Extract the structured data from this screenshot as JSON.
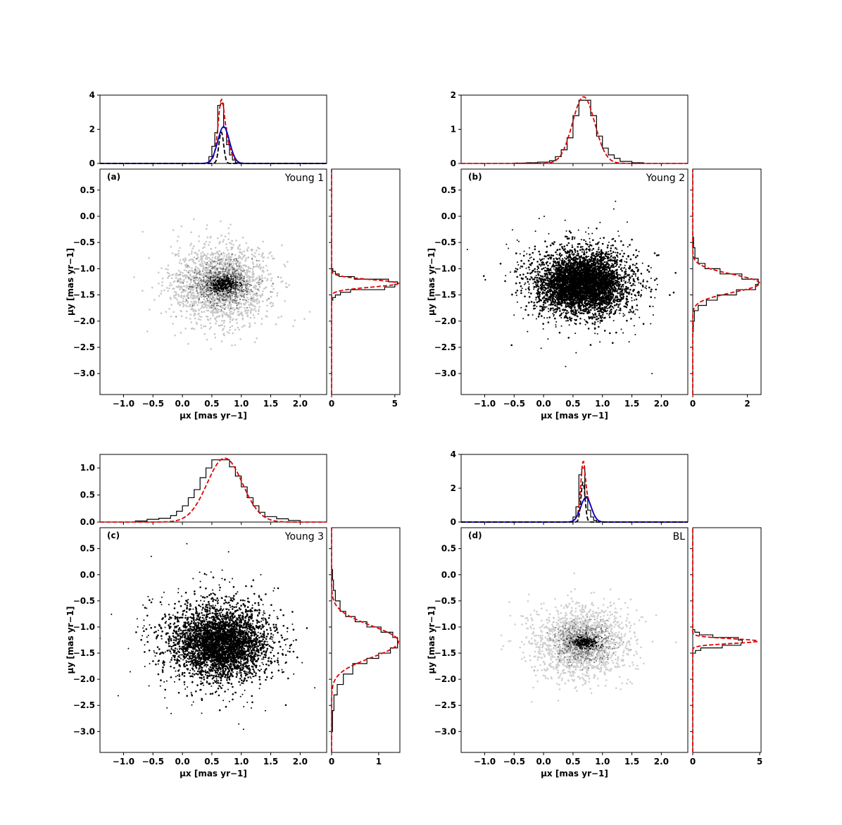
{
  "chart_data": [
    {
      "type": "scatter",
      "panel_label": "(a)",
      "name": "Young 1",
      "xlabel": "μx [mas yr−1]",
      "ylabel": "μy [mas yr−1]",
      "xlim": [
        -1.4,
        2.45
      ],
      "ylim": [
        -3.4,
        0.9
      ],
      "xticks": [
        "−1.0",
        "−0.5",
        "0.0",
        "0.5",
        "1.0",
        "1.5",
        "2.0"
      ],
      "yticks": [
        "0.5",
        "0.0",
        "−0.5",
        "−1.0",
        "−1.5",
        "−2.0",
        "−2.5",
        "−3.0"
      ],
      "scatter": {
        "field": {
          "color": "#c8c8c8",
          "center": [
            0.65,
            -1.3
          ],
          "sigma": [
            0.42,
            0.38
          ],
          "count": 1800
        },
        "members": {
          "color": "#000000",
          "center": [
            0.7,
            -1.3
          ],
          "sigma": [
            0.12,
            0.07
          ],
          "count": 260
        },
        "mid": {
          "color": "#666666",
          "center": [
            0.68,
            -1.3
          ],
          "sigma": [
            0.25,
            0.2
          ],
          "count": 700
        }
      },
      "hist_x": {
        "ylim": [
          0,
          4
        ],
        "yticks": [
          "0",
          "2",
          "4"
        ],
        "bins": [
          0.45,
          0.5,
          0.55,
          0.6,
          0.65,
          0.7,
          0.75,
          0.8,
          0.85,
          0.9,
          0.95
        ],
        "counts": [
          0.4,
          1.0,
          1.8,
          3.4,
          3.5,
          2.1,
          1.1,
          0.5,
          0.2,
          0.05
        ],
        "curves": [
          {
            "label": "total",
            "color": "#e00000",
            "dash": true,
            "components": [
              [
                0.66,
                0.05,
                2.3
              ],
              [
                0.7,
                0.1,
                1.55
              ]
            ]
          },
          {
            "label": "broad",
            "color": "#0000cc",
            "dash": false,
            "components": [
              [
                0.7,
                0.1,
                2.15
              ]
            ]
          },
          {
            "label": "narrow",
            "color": "#000000",
            "dash": true,
            "components": [
              [
                0.66,
                0.04,
                1.85
              ]
            ]
          }
        ]
      },
      "hist_y": {
        "xlim": [
          0,
          5.4
        ],
        "xticks": [
          "0",
          "5"
        ],
        "bins": [
          -1.6,
          -1.55,
          -1.5,
          -1.45,
          -1.4,
          -1.35,
          -1.3,
          -1.25,
          -1.2,
          -1.15,
          -1.1,
          -1.05,
          -1.0
        ],
        "counts": [
          0.1,
          0.3,
          0.7,
          1.5,
          4.2,
          5.0,
          5.2,
          4.5,
          1.8,
          0.6,
          0.3,
          0.1
        ],
        "curves": [
          {
            "label": "total",
            "color": "#e00000",
            "dash": true,
            "components": [
              [
                -1.28,
                0.07,
                5.3
              ]
            ]
          }
        ]
      }
    },
    {
      "type": "scatter",
      "panel_label": "(b)",
      "name": "Young 2",
      "xlabel": "μx [mas yr−1]",
      "ylabel": "μy [mas yr−1]",
      "xlim": [
        -1.4,
        2.45
      ],
      "ylim": [
        -3.4,
        0.9
      ],
      "xticks": [
        "−1.0",
        "−0.5",
        "0.0",
        "0.5",
        "1.0",
        "1.5",
        "2.0"
      ],
      "yticks": [
        "0.5",
        "0.0",
        "−0.5",
        "−1.0",
        "−1.5",
        "−2.0",
        "−2.5",
        "−3.0"
      ],
      "scatter": {
        "field": {
          "color": "#000000",
          "center": [
            0.65,
            -1.28
          ],
          "sigma": [
            0.42,
            0.32
          ],
          "count": 2600
        },
        "members": {
          "color": "#000000",
          "center": [
            0.68,
            -1.3
          ],
          "sigma": [
            0.28,
            0.22
          ],
          "count": 2200
        },
        "mid": {
          "color": "#000000",
          "center": [
            0.6,
            -1.25
          ],
          "sigma": [
            0.55,
            0.45
          ],
          "count": 500
        }
      },
      "hist_x": {
        "ylim": [
          0,
          2
        ],
        "yticks": [
          "0",
          "1",
          "2"
        ],
        "bins": [
          -0.5,
          -0.3,
          -0.1,
          0.1,
          0.2,
          0.3,
          0.4,
          0.5,
          0.6,
          0.7,
          0.8,
          0.9,
          1.0,
          1.1,
          1.2,
          1.3,
          1.5,
          1.7
        ],
        "counts": [
          0.01,
          0.02,
          0.04,
          0.08,
          0.2,
          0.4,
          0.75,
          1.4,
          1.85,
          1.85,
          1.4,
          0.8,
          0.45,
          0.25,
          0.15,
          0.06,
          0.02
        ],
        "curves": [
          {
            "label": "total",
            "color": "#e00000",
            "dash": true,
            "components": [
              [
                0.68,
                0.19,
                1.95
              ]
            ]
          }
        ]
      },
      "hist_y": {
        "xlim": [
          0,
          2.5
        ],
        "xticks": [
          "0",
          "2"
        ],
        "bins": [
          -2.2,
          -2.0,
          -1.8,
          -1.7,
          -1.6,
          -1.5,
          -1.4,
          -1.3,
          -1.2,
          -1.1,
          -1.0,
          -0.9,
          -0.8,
          -0.6,
          -0.4
        ],
        "counts": [
          0.02,
          0.06,
          0.2,
          0.5,
          0.9,
          1.6,
          2.3,
          2.4,
          1.8,
          1.0,
          0.45,
          0.2,
          0.08,
          0.03
        ],
        "curves": [
          {
            "label": "total",
            "color": "#e00000",
            "dash": true,
            "components": [
              [
                -1.28,
                0.17,
                2.45
              ]
            ]
          }
        ]
      }
    },
    {
      "type": "scatter",
      "panel_label": "(c)",
      "name": "Young 3",
      "xlabel": "μx [mas yr−1]",
      "ylabel": "μy [mas yr−1]",
      "xlim": [
        -1.4,
        2.45
      ],
      "ylim": [
        -3.4,
        0.9
      ],
      "xticks": [
        "−1.0",
        "−0.5",
        "0.0",
        "0.5",
        "1.0",
        "1.5",
        "2.0"
      ],
      "yticks": [
        "0.5",
        "0.0",
        "−0.5",
        "−1.0",
        "−1.5",
        "−2.0",
        "−2.5",
        "−3.0"
      ],
      "scatter": {
        "field": {
          "color": "#000000",
          "center": [
            0.62,
            -1.3
          ],
          "sigma": [
            0.45,
            0.38
          ],
          "count": 2200
        },
        "members": {
          "color": "#000000",
          "center": [
            0.65,
            -1.32
          ],
          "sigma": [
            0.3,
            0.26
          ],
          "count": 1600
        },
        "mid": {
          "color": "#000000",
          "center": [
            0.55,
            -1.25
          ],
          "sigma": [
            0.65,
            0.55
          ],
          "count": 450
        }
      },
      "hist_x": {
        "ylim": [
          0,
          1.25
        ],
        "yticks": [
          "0.0",
          "0.5",
          "1.0"
        ],
        "bins": [
          -0.8,
          -0.6,
          -0.4,
          -0.2,
          -0.1,
          0.0,
          0.1,
          0.2,
          0.3,
          0.4,
          0.5,
          0.6,
          0.7,
          0.8,
          0.9,
          1.0,
          1.1,
          1.2,
          1.3,
          1.4,
          1.6,
          1.8,
          2.0
        ],
        "counts": [
          0.02,
          0.05,
          0.07,
          0.12,
          0.2,
          0.3,
          0.45,
          0.6,
          0.82,
          1.0,
          1.15,
          1.15,
          1.15,
          1.02,
          0.85,
          0.65,
          0.45,
          0.3,
          0.18,
          0.1,
          0.06,
          0.03
        ],
        "curves": [
          {
            "label": "total",
            "color": "#e00000",
            "dash": true,
            "components": [
              [
                0.72,
                0.3,
                1.18
              ]
            ]
          }
        ]
      },
      "hist_y": {
        "xlim": [
          0,
          1.45
        ],
        "xticks": [
          "0",
          "1"
        ],
        "bins": [
          -3.0,
          -2.6,
          -2.3,
          -2.1,
          -1.9,
          -1.7,
          -1.6,
          -1.5,
          -1.4,
          -1.3,
          -1.2,
          -1.1,
          -1.0,
          -0.9,
          -0.8,
          -0.7,
          -0.5,
          -0.3,
          -0.1,
          0.1
        ],
        "counts": [
          0.02,
          0.05,
          0.12,
          0.25,
          0.45,
          0.75,
          1.0,
          1.25,
          1.4,
          1.4,
          1.3,
          1.05,
          0.75,
          0.5,
          0.3,
          0.18,
          0.08,
          0.04,
          0.02
        ],
        "curves": [
          {
            "label": "total",
            "color": "#e00000",
            "dash": true,
            "components": [
              [
                -1.28,
                0.3,
                1.42
              ]
            ]
          }
        ]
      }
    },
    {
      "type": "scatter",
      "panel_label": "(d)",
      "name": "BL",
      "xlabel": "μx [mas yr−1]",
      "ylabel": "μy [mas yr−1]",
      "xlim": [
        -1.4,
        2.45
      ],
      "ylim": [
        -3.4,
        0.9
      ],
      "xticks": [
        "−1.0",
        "−0.5",
        "0.0",
        "0.5",
        "1.0",
        "1.5",
        "2.0"
      ],
      "yticks": [
        "0.5",
        "0.0",
        "−0.5",
        "−1.0",
        "−1.5",
        "−2.0",
        "−2.5",
        "−3.0"
      ],
      "scatter": {
        "field": {
          "color": "#cfcfcf",
          "center": [
            0.62,
            -1.3
          ],
          "sigma": [
            0.42,
            0.36
          ],
          "count": 1700
        },
        "members": {
          "color": "#000000",
          "center": [
            0.7,
            -1.3
          ],
          "sigma": [
            0.1,
            0.06
          ],
          "count": 230
        },
        "mid": {
          "color": "#7a7a7a",
          "center": [
            0.68,
            -1.3
          ],
          "sigma": [
            0.22,
            0.18
          ],
          "count": 600
        }
      },
      "hist_x": {
        "ylim": [
          0,
          4
        ],
        "yticks": [
          "0",
          "2",
          "4"
        ],
        "bins": [
          0.5,
          0.55,
          0.6,
          0.65,
          0.7,
          0.75,
          0.8,
          0.85,
          0.9
        ],
        "counts": [
          0.3,
          0.9,
          2.8,
          3.2,
          1.5,
          0.7,
          0.3,
          0.1
        ],
        "curves": [
          {
            "label": "total",
            "color": "#e00000",
            "dash": true,
            "components": [
              [
                0.67,
                0.035,
                2.35
              ],
              [
                0.72,
                0.09,
                1.45
              ]
            ]
          },
          {
            "label": "broad",
            "color": "#0000cc",
            "dash": false,
            "components": [
              [
                0.72,
                0.09,
                1.45
              ]
            ]
          },
          {
            "label": "narrow",
            "color": "#000000",
            "dash": true,
            "components": [
              [
                0.67,
                0.035,
                2.35
              ]
            ]
          }
        ]
      },
      "hist_y": {
        "xlim": [
          0,
          5.1
        ],
        "xticks": [
          "0",
          "5"
        ],
        "bins": [
          -1.5,
          -1.45,
          -1.4,
          -1.35,
          -1.3,
          -1.25,
          -1.2,
          -1.15,
          -1.1,
          -1.05
        ],
        "counts": [
          0.2,
          0.6,
          2.2,
          3.6,
          3.7,
          3.4,
          1.5,
          0.5,
          0.15
        ],
        "curves": [
          {
            "label": "total",
            "color": "#e00000",
            "dash": true,
            "components": [
              [
                -1.27,
                0.045,
                4.9
              ]
            ]
          }
        ]
      }
    }
  ]
}
